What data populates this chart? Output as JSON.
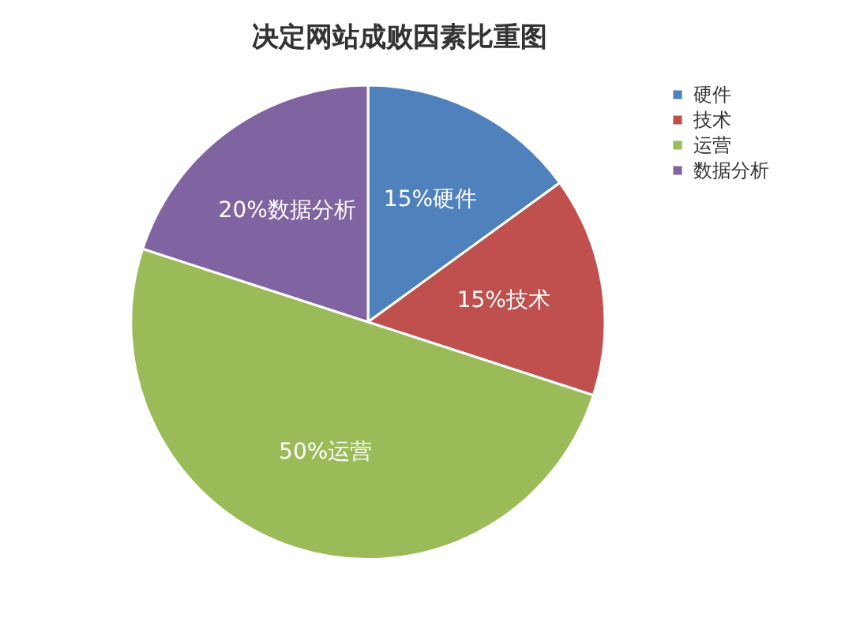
{
  "chart_data": {
    "type": "pie",
    "title": "决定网站成败因素比重图",
    "categories": [
      "硬件",
      "技术",
      "运营",
      "数据分析"
    ],
    "values": [
      15,
      15,
      50,
      20
    ],
    "colors": [
      "#4f81bd",
      "#c0504d",
      "#9bbb59",
      "#8064a2"
    ],
    "value_labels": [
      "15%硬件",
      "15%技术",
      "50%运营",
      "20%数据分析"
    ],
    "legend": "right"
  }
}
